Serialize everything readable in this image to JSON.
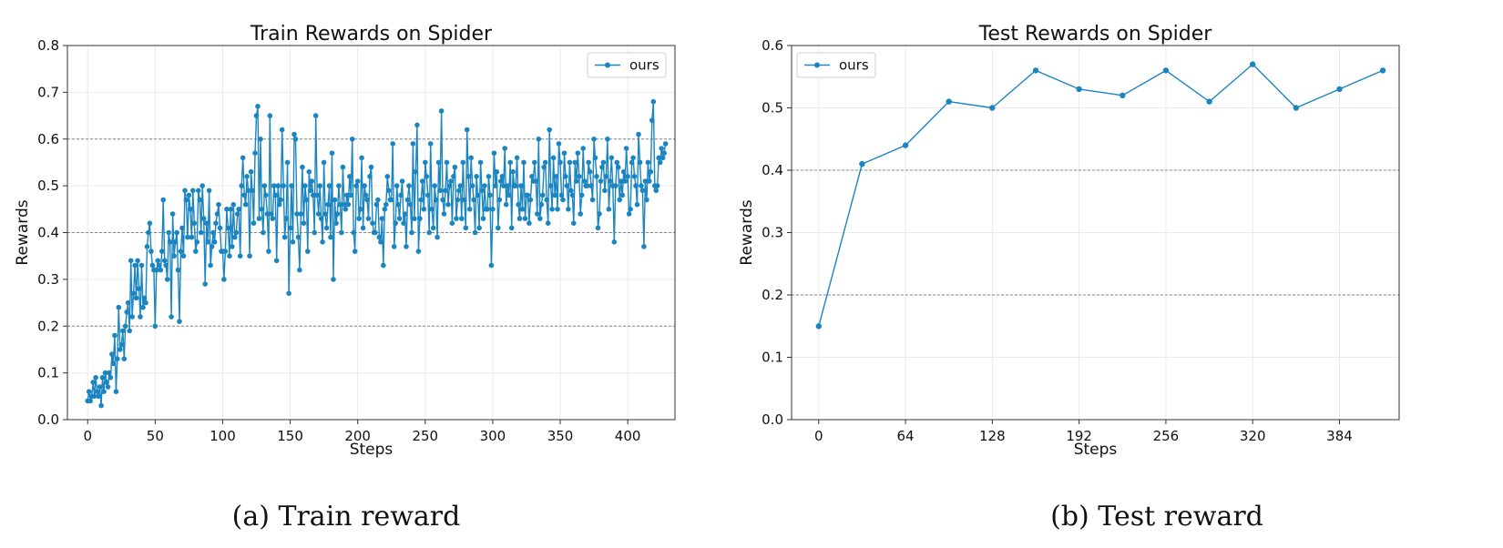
{
  "chart_data": [
    {
      "type": "line",
      "title": "Train Rewards on Spider",
      "xlabel": "Steps",
      "ylabel": "Rewards",
      "xlim": [
        -15,
        435
      ],
      "ylim": [
        0.0,
        0.8
      ],
      "xticks": [
        0,
        50,
        100,
        150,
        200,
        250,
        300,
        350,
        400
      ],
      "yticks": [
        0.0,
        0.1,
        0.2,
        0.3,
        0.4,
        0.5,
        0.6,
        0.7,
        0.8
      ],
      "ytick_labels": [
        "0.0",
        "0.1",
        "0.2",
        "0.3",
        "0.4",
        "0.5",
        "0.6",
        "0.7",
        "0.8"
      ],
      "grid": true,
      "legend": "top-right",
      "series": [
        {
          "name": "ours",
          "color": "#1a85c0",
          "x_start": 0,
          "x_step": 1,
          "values": [
            0.04,
            0.06,
            0.04,
            0.05,
            0.08,
            0.05,
            0.09,
            0.06,
            0.05,
            0.07,
            0.03,
            0.09,
            0.06,
            0.1,
            0.08,
            0.07,
            0.1,
            0.09,
            0.14,
            0.12,
            0.18,
            0.06,
            0.13,
            0.24,
            0.15,
            0.16,
            0.19,
            0.13,
            0.2,
            0.23,
            0.25,
            0.19,
            0.34,
            0.22,
            0.27,
            0.33,
            0.26,
            0.34,
            0.28,
            0.22,
            0.33,
            0.24,
            0.26,
            0.25,
            0.37,
            0.4,
            0.42,
            0.36,
            0.33,
            0.32,
            0.2,
            0.32,
            0.34,
            0.33,
            0.32,
            0.36,
            0.47,
            0.34,
            0.33,
            0.3,
            0.4,
            0.38,
            0.22,
            0.44,
            0.35,
            0.38,
            0.4,
            0.32,
            0.21,
            0.36,
            0.41,
            0.35,
            0.49,
            0.47,
            0.39,
            0.48,
            0.45,
            0.39,
            0.49,
            0.42,
            0.36,
            0.38,
            0.49,
            0.47,
            0.4,
            0.5,
            0.43,
            0.29,
            0.42,
            0.38,
            0.49,
            0.33,
            0.37,
            0.4,
            0.38,
            0.42,
            0.44,
            0.46,
            0.41,
            0.36,
            0.36,
            0.3,
            0.36,
            0.45,
            0.41,
            0.35,
            0.45,
            0.37,
            0.46,
            0.39,
            0.4,
            0.44,
            0.45,
            0.35,
            0.5,
            0.56,
            0.48,
            0.46,
            0.52,
            0.49,
            0.35,
            0.53,
            0.49,
            0.42,
            0.57,
            0.65,
            0.67,
            0.43,
            0.6,
            0.45,
            0.4,
            0.5,
            0.48,
            0.44,
            0.36,
            0.65,
            0.44,
            0.43,
            0.5,
            0.48,
            0.34,
            0.5,
            0.46,
            0.47,
            0.62,
            0.5,
            0.39,
            0.43,
            0.55,
            0.27,
            0.41,
            0.5,
            0.38,
            0.61,
            0.6,
            0.44,
            0.39,
            0.32,
            0.44,
            0.54,
            0.42,
            0.5,
            0.47,
            0.36,
            0.53,
            0.49,
            0.51,
            0.48,
            0.4,
            0.65,
            0.48,
            0.44,
            0.5,
            0.43,
            0.38,
            0.55,
            0.44,
            0.41,
            0.46,
            0.5,
            0.39,
            0.57,
            0.3,
            0.47,
            0.42,
            0.44,
            0.5,
            0.46,
            0.4,
            0.54,
            0.46,
            0.45,
            0.48,
            0.46,
            0.52,
            0.48,
            0.6,
            0.4,
            0.36,
            0.5,
            0.51,
            0.43,
            0.45,
            0.56,
            0.41,
            0.5,
            0.48,
            0.47,
            0.43,
            0.52,
            0.54,
            0.42,
            0.4,
            0.4,
            0.46,
            0.47,
            0.39,
            0.38,
            0.43,
            0.33,
            0.45,
            0.46,
            0.52,
            0.49,
            0.47,
            0.47,
            0.59,
            0.37,
            0.42,
            0.5,
            0.46,
            0.43,
            0.48,
            0.51,
            0.42,
            0.44,
            0.37,
            0.47,
            0.5,
            0.46,
            0.4,
            0.59,
            0.43,
            0.53,
            0.63,
            0.36,
            0.43,
            0.47,
            0.51,
            0.45,
            0.55,
            0.52,
            0.48,
            0.4,
            0.59,
            0.45,
            0.41,
            0.5,
            0.47,
            0.39,
            0.55,
            0.49,
            0.66,
            0.47,
            0.44,
            0.49,
            0.55,
            0.46,
            0.5,
            0.51,
            0.42,
            0.52,
            0.54,
            0.43,
            0.47,
            0.49,
            0.5,
            0.43,
            0.55,
            0.47,
            0.41,
            0.62,
            0.52,
            0.45,
            0.56,
            0.5,
            0.47,
            0.4,
            0.52,
            0.48,
            0.41,
            0.55,
            0.49,
            0.43,
            0.5,
            0.45,
            0.45,
            0.52,
            0.48,
            0.33,
            0.45,
            0.57,
            0.5,
            0.53,
            0.41,
            0.47,
            0.51,
            0.52,
            0.5,
            0.58,
            0.46,
            0.5,
            0.48,
            0.55,
            0.41,
            0.53,
            0.5,
            0.5,
            0.56,
            0.46,
            0.43,
            0.5,
            0.45,
            0.55,
            0.43,
            0.48,
            0.48,
            0.42,
            0.47,
            0.52,
            0.51,
            0.55,
            0.51,
            0.44,
            0.6,
            0.43,
            0.46,
            0.48,
            0.54,
            0.55,
            0.47,
            0.42,
            0.62,
            0.5,
            0.45,
            0.56,
            0.48,
            0.52,
            0.45,
            0.59,
            0.55,
            0.48,
            0.47,
            0.57,
            0.52,
            0.5,
            0.45,
            0.55,
            0.49,
            0.48,
            0.42,
            0.55,
            0.51,
            0.57,
            0.52,
            0.44,
            0.48,
            0.58,
            0.51,
            0.5,
            0.5,
            0.55,
            0.53,
            0.5,
            0.47,
            0.6,
            0.56,
            0.52,
            0.41,
            0.44,
            0.51,
            0.54,
            0.55,
            0.49,
            0.52,
            0.6,
            0.45,
            0.51,
            0.56,
            0.5,
            0.38,
            0.5,
            0.55,
            0.54,
            0.47,
            0.51,
            0.48,
            0.53,
            0.51,
            0.58,
            0.52,
            0.44,
            0.45,
            0.55,
            0.56,
            0.52,
            0.5,
            0.46,
            0.61,
            0.55,
            0.5,
            0.49,
            0.37,
            0.51,
            0.47,
            0.55,
            0.51,
            0.53,
            0.64,
            0.68,
            0.5,
            0.49,
            0.5,
            0.56,
            0.55,
            0.58,
            0.56,
            0.57,
            0.59
          ]
        }
      ],
      "caption": "(a) Train reward"
    },
    {
      "type": "line",
      "title": "Test Rewards on Spider",
      "xlabel": "Steps",
      "ylabel": "Rewards",
      "xlim": [
        -20,
        428
      ],
      "ylim": [
        0.0,
        0.6
      ],
      "xticks": [
        0,
        64,
        128,
        192,
        256,
        320,
        384
      ],
      "yticks": [
        0.0,
        0.1,
        0.2,
        0.3,
        0.4,
        0.5,
        0.6
      ],
      "ytick_labels": [
        "0.0",
        "0.1",
        "0.2",
        "0.3",
        "0.4",
        "0.5",
        "0.6"
      ],
      "grid": true,
      "legend": "top-left",
      "series": [
        {
          "name": "ours",
          "color": "#1a85c0",
          "x": [
            0,
            32,
            64,
            96,
            128,
            160,
            192,
            224,
            256,
            288,
            320,
            352,
            384,
            416
          ],
          "values": [
            0.15,
            0.41,
            0.44,
            0.51,
            0.5,
            0.56,
            0.53,
            0.52,
            0.56,
            0.51,
            0.57,
            0.5,
            0.53,
            0.56
          ]
        }
      ],
      "caption": "(b) Test reward"
    }
  ]
}
